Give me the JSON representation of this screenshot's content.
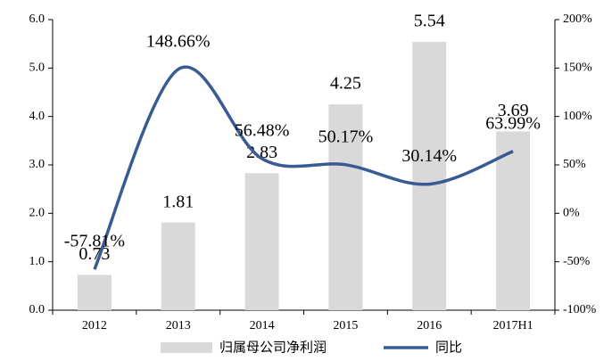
{
  "chart_data": {
    "type": "combo",
    "categories": [
      "2012",
      "2013",
      "2014",
      "2015",
      "2016",
      "2017H1"
    ],
    "series": [
      {
        "name": "归属母公司净利润",
        "type": "bar",
        "color": "#d9d9d9",
        "axis": "y",
        "values": [
          0.73,
          1.81,
          2.83,
          4.25,
          5.54,
          3.69
        ]
      },
      {
        "name": "同比",
        "type": "line",
        "color": "#3a5a94",
        "axis": "y2",
        "values": [
          -57.81,
          148.66,
          56.48,
          50.17,
          30.14,
          63.99
        ],
        "value_labels": [
          "-57.81%",
          "148.66%",
          "56.48%",
          "50.17%",
          "30.14%",
          "63.99%"
        ]
      }
    ],
    "ylim": [
      0,
      6
    ],
    "yticks": [
      {
        "value": 0,
        "label": "0.0"
      },
      {
        "value": 1,
        "label": "1.0"
      },
      {
        "value": 2,
        "label": "2.0"
      },
      {
        "value": 3,
        "label": "3.0"
      },
      {
        "value": 4,
        "label": "4.0"
      },
      {
        "value": 5,
        "label": "5.0"
      },
      {
        "value": 6,
        "label": "6.0"
      }
    ],
    "y2lim": [
      -100,
      200
    ],
    "y2ticks": [
      {
        "value": -100,
        "label": "-100%"
      },
      {
        "value": -50,
        "label": "-50%"
      },
      {
        "value": 0,
        "label": "0%"
      },
      {
        "value": 50,
        "label": "50%"
      },
      {
        "value": 100,
        "label": "100%"
      },
      {
        "value": 150,
        "label": "150%"
      },
      {
        "value": 200,
        "label": "200%"
      }
    ],
    "legend": "bottom"
  }
}
